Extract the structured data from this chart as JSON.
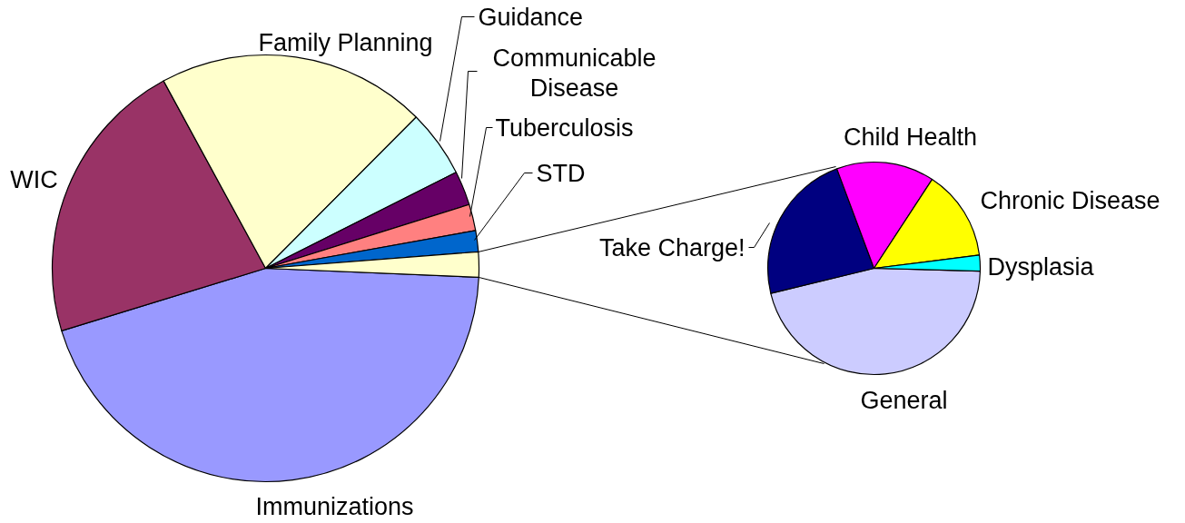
{
  "chart_data": [
    {
      "type": "pie",
      "categories": [
        "Immunizations",
        "WIC",
        "Family Planning",
        "Guidance",
        "Communicable Disease",
        "Tuberculosis",
        "STD",
        null
      ],
      "values": [
        44.6,
        21.8,
        20.4,
        5.1,
        2.6,
        2.0,
        1.6,
        1.9
      ],
      "colors": [
        "#9999ff",
        "#993366",
        "#ffffcc",
        "#ccffff",
        "#660066",
        "#ff8080",
        "#0066cc",
        "#ffffcc"
      ]
    },
    {
      "type": "pie",
      "categories": [
        "General",
        "Take Charge!",
        "Child Health",
        "Chronic Disease",
        "Dysplasia"
      ],
      "values": [
        45.8,
        23.1,
        14.9,
        13.8,
        2.4
      ],
      "colors": [
        "#ccccff",
        "#000080",
        "#ff00ff",
        "#ffff00",
        "#00ffff"
      ]
    }
  ]
}
